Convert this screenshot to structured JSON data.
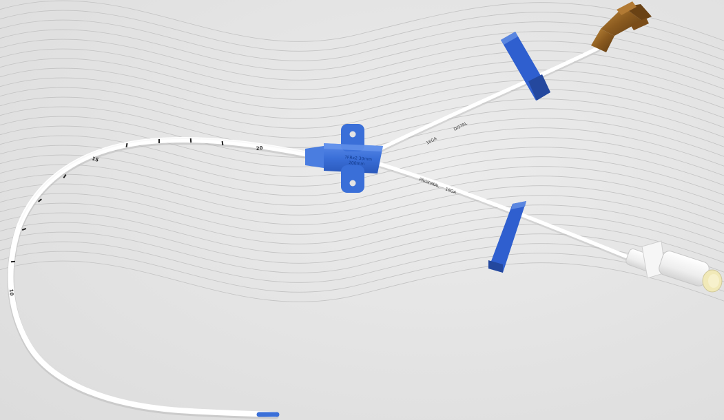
{
  "photo": {
    "subject": "catheter-photo",
    "background_color": "#e4e4e4",
    "line_color": "#c2c2c2",
    "tube_color": "#ffffff",
    "hub_color": "#3a6fd8",
    "clamp_color": "#2f5fcf",
    "luer_amber_color": "#8a5a1f",
    "connector_clear_color": "#f2f2f2"
  },
  "markings": {
    "mark_20": "20",
    "mark_15": "15",
    "mark_10": "10",
    "hub_line_1": "7FRx2 30mm",
    "hub_line_2": "200mm",
    "distal_label": "DISTAL",
    "distal_gauge": "16GA",
    "proximal_label": "PROXIMAL",
    "proximal_gauge": "18GA"
  }
}
